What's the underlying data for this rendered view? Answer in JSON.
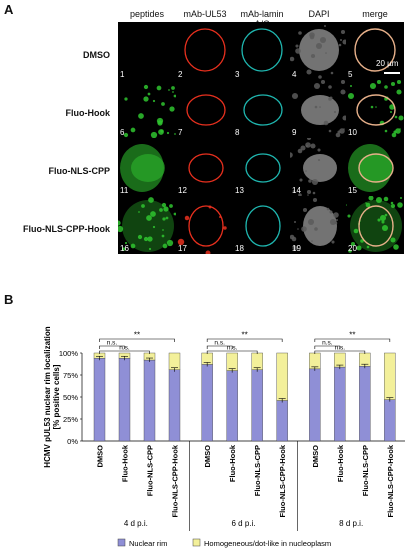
{
  "figure": {
    "panel_a_label": "A",
    "panel_b_label": "B",
    "columns": [
      "peptides",
      "mAb-UL53",
      "mAb-lamin A/C",
      "DAPI",
      "merge"
    ],
    "rows": [
      "DMSO",
      "Fluo-Hook",
      "Fluo-NLS-CPP",
      "Fluo-NLS-CPP-Hook"
    ],
    "panel_numbers": [
      "1",
      "2",
      "3",
      "4",
      "5",
      "6",
      "7",
      "8",
      "9",
      "10",
      "11",
      "12",
      "13",
      "14",
      "15",
      "16",
      "17",
      "18",
      "19",
      "20"
    ],
    "scale_bar": "20 µm",
    "colors": {
      "ul53": "#e8301e",
      "lamin": "#1fb7b0",
      "dapi": "#9a9a9a",
      "peptide": "#2fc42f"
    }
  },
  "chart_data": {
    "type": "bar",
    "stacked": true,
    "ylabel": "HCMV pUL53 nuclear rim localization\n[% positive cells]",
    "yticks": [
      "0%",
      "25%",
      "50%",
      "75%",
      "100%"
    ],
    "ylim": [
      0,
      100
    ],
    "categories": [
      "DMSO",
      "Fluo-Hook",
      "Fluo-NLS-CPP",
      "Fluo-NLS-CPP-Hook",
      "DMSO",
      "Fluo-Hook",
      "Fluo-NLS-CPP",
      "Fluo-NLS-CPP-Hook",
      "DMSO",
      "Fluo-Hook",
      "Fluo-NLS-CPP",
      "Fluo-NLS-CPP-Hook"
    ],
    "groups": [
      "4 d p.i.",
      "6 d p.i.",
      "8 d p.i."
    ],
    "series": [
      {
        "name": "Nuclear rim",
        "color": "#8f8fd6",
        "values": [
          94,
          94,
          92,
          81,
          87,
          80,
          81,
          46,
          82,
          84,
          85,
          47
        ]
      },
      {
        "name": "Homogeneous/dot-like in nucleoplasm",
        "color": "#f3f09a",
        "values": [
          6,
          6,
          8,
          19,
          13,
          20,
          19,
          54,
          18,
          16,
          15,
          53
        ]
      }
    ],
    "significance": [
      "**",
      "n.s.",
      "n.s."
    ]
  }
}
